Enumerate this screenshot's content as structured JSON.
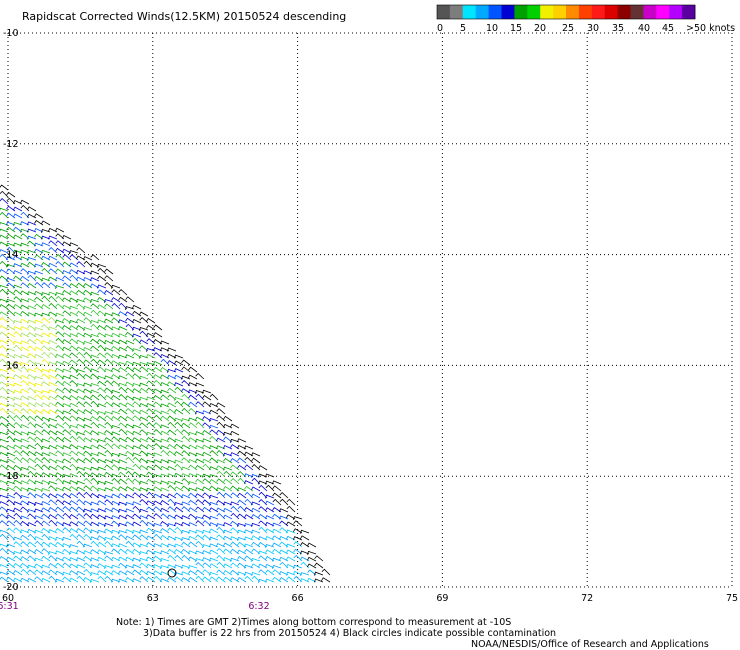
{
  "title": "Rapidscat Corrected Winds(12.5KM) 20150524 descending",
  "colorbar": {
    "colors": [
      "#555555",
      "#7d7d7d",
      "#00e5ff",
      "#00a8ff",
      "#0055ff",
      "#0000d2",
      "#00a000",
      "#00d000",
      "#f0f000",
      "#ffd000",
      "#ff8c00",
      "#ff4000",
      "#ff1a1a",
      "#dc0000",
      "#8c0000",
      "#643232",
      "#c800c8",
      "#ff00ff",
      "#b400ff",
      "#5a00a0"
    ],
    "labels": [
      {
        "text": "0"
      },
      {
        "text": "5"
      },
      {
        "text": "10"
      },
      {
        "text": "15"
      },
      {
        "text": "20"
      },
      {
        "text": "25"
      },
      {
        "text": "30"
      },
      {
        "text": "35"
      },
      {
        "text": "40"
      },
      {
        "text": "45"
      },
      {
        "text": ">50 knots"
      }
    ]
  },
  "map": {
    "lon_min": 60,
    "lon_max": 75,
    "lat_top": -10,
    "lat_bottom": -20,
    "lat_ticks": [
      {
        "value": -10,
        "label": "-10"
      },
      {
        "value": -12,
        "label": "-12"
      },
      {
        "value": -14,
        "label": "-14"
      },
      {
        "value": -16,
        "label": "-16"
      },
      {
        "value": -18,
        "label": "-18"
      },
      {
        "value": -20,
        "label": "-20"
      }
    ],
    "lon_ticks": [
      {
        "value": 60,
        "label": "60"
      },
      {
        "value": 63,
        "label": "63"
      },
      {
        "value": 66,
        "label": "66"
      },
      {
        "value": 69,
        "label": "69"
      },
      {
        "value": 72,
        "label": "72"
      },
      {
        "value": 75,
        "label": "75"
      }
    ],
    "time_ticks": [
      {
        "lon": 60,
        "label": "6:31"
      },
      {
        "lon": 65.2,
        "label": "6:32"
      }
    ],
    "swath_edge": [
      [
        60,
        -12.8
      ],
      [
        62,
        -14.2
      ],
      [
        64,
        -16.2
      ],
      [
        66,
        -18.6
      ],
      [
        66.8,
        -20
      ]
    ]
  },
  "notes": {
    "line1": "Note: 1) Times are GMT 2)Times along bottom correspond to measurement at -10S",
    "line2": "3)Data buffer is 22 hrs from 20150524 4) Black circles indicate possible contamination",
    "credit": "NOAA/NESDIS/Office of Research and Applications"
  }
}
